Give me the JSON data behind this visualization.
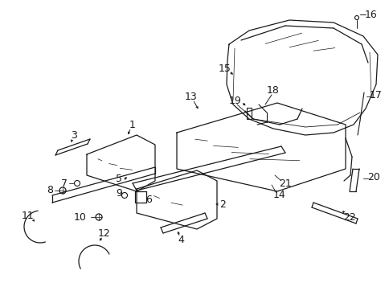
{
  "background": "#ffffff",
  "line_color": "#1a1a1a",
  "fig_width": 4.85,
  "fig_height": 3.57,
  "dpi": 100
}
